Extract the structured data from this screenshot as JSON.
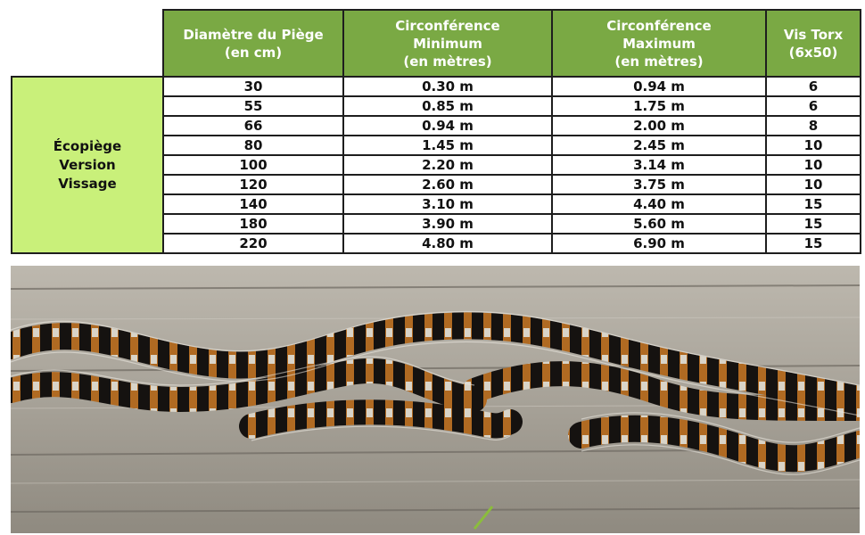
{
  "table": {
    "headers": {
      "diameter": "Diamètre du Piège\n(en cm)",
      "circ_min": "Circonférence\nMinimum\n(en mètres)",
      "circ_max": "Circonférence\nMaximum\n(en mètres)",
      "screws": "Vis Torx\n(6x50)"
    },
    "group_label": "Écopiège\nVersion\nVissage",
    "rows": [
      {
        "diameter": "30",
        "circ_min": "0.30 m",
        "circ_max": "0.94 m",
        "screws": "6"
      },
      {
        "diameter": "55",
        "circ_min": "0.85 m",
        "circ_max": "1.75 m",
        "screws": "6"
      },
      {
        "diameter": "66",
        "circ_min": "0.94 m",
        "circ_max": "2.00 m",
        "screws": "8"
      },
      {
        "diameter": "80",
        "circ_min": "1.45 m",
        "circ_max": "2.45 m",
        "screws": "10"
      },
      {
        "diameter": "100",
        "circ_min": "2.20 m",
        "circ_max": "3.14 m",
        "screws": "10"
      },
      {
        "diameter": "120",
        "circ_min": "2.60 m",
        "circ_max": "3.75 m",
        "screws": "10"
      },
      {
        "diameter": "140",
        "circ_min": "3.10 m",
        "circ_max": "4.40 m",
        "screws": "15"
      },
      {
        "diameter": "180",
        "circ_min": "3.90 m",
        "circ_max": "5.60 m",
        "screws": "15"
      },
      {
        "diameter": "220",
        "circ_min": "4.80 m",
        "circ_max": "6.90 m",
        "screws": "15"
      }
    ]
  },
  "colors": {
    "header_green": "#7aa944",
    "group_green": "#c9f07a",
    "border": "#1e1e1e"
  },
  "photo": {
    "subject": "processionary-caterpillars-on-wood"
  }
}
